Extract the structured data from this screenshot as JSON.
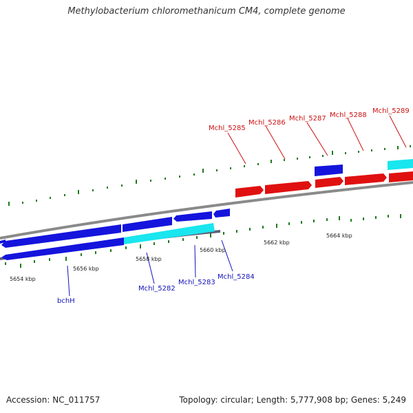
{
  "title": "Methylobacterium chloromethanicum CM4, complete genome",
  "footer": {
    "accession": "Accession: NC_011757",
    "summary": "Topology: circular; Length: 5,777,908 bp; Genes: 5,249"
  },
  "colors": {
    "backbone": "#8a8a8a",
    "tick": "#1f7a1f",
    "forward_gene": "#e01010",
    "reverse_gene": "#1010dd",
    "highlight_gene": "#19e6ee",
    "forward_label": "#cc1111",
    "reverse_label": "#1111bb"
  },
  "tick_labels": [
    "5654 kbp",
    "5656 kbp",
    "5658 kbp",
    "5660 kbp",
    "5662 kbp",
    "5664 kbp"
  ],
  "gene_labels": {
    "forward": [
      "Mchl_5285",
      "Mchl_5286",
      "Mchl_5287",
      "Mchl_5288",
      "Mchl_5289"
    ],
    "reverse": [
      "bchH",
      "Mchl_5282",
      "Mchl_5283",
      "Mchl_5284"
    ]
  }
}
